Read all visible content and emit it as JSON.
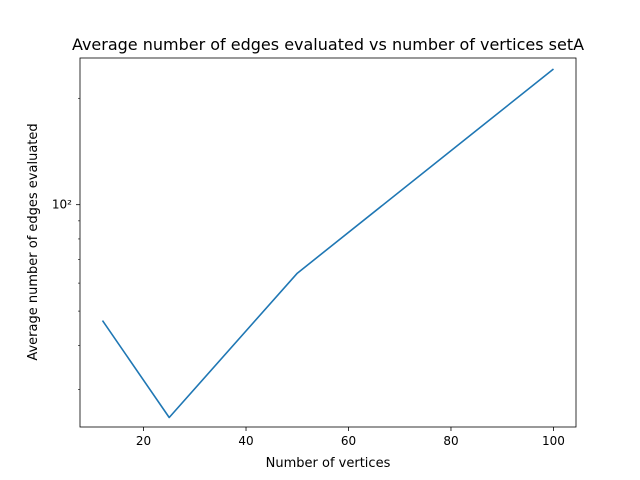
{
  "chart_data": {
    "type": "line",
    "title": "Average number of edges evaluated vs number of vertices setA",
    "xlabel": "Number of vertices",
    "ylabel": "Average number of edges evaluated",
    "yscale": "log",
    "xlim": [
      7.6,
      104.4
    ],
    "ylim": [
      23.5,
      260
    ],
    "xticks": [
      20,
      40,
      60,
      80,
      100
    ],
    "xtick_labels": [
      "20",
      "40",
      "60",
      "80",
      "100"
    ],
    "yticks": [
      100
    ],
    "ytick_labels": [
      "10²"
    ],
    "grid": false,
    "series": [
      {
        "color": "#1f77b4",
        "x": [
          12,
          25,
          50,
          100
        ],
        "y": [
          47,
          25,
          64,
          242
        ]
      }
    ]
  }
}
